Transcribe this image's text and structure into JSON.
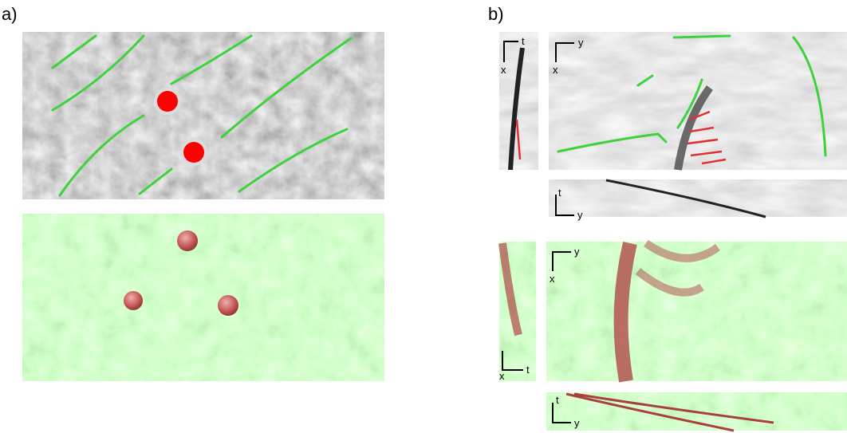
{
  "panel_a": {
    "label": "a)"
  },
  "panel_b": {
    "label": "b)",
    "insets": [
      {
        "labels": [
          "t",
          "x"
        ]
      },
      {
        "labels": [
          "y",
          "x"
        ]
      },
      {
        "labels": [
          "t",
          "y"
        ]
      },
      {
        "labels": [
          "x",
          "t"
        ]
      },
      {
        "labels": [
          "y",
          "x"
        ]
      },
      {
        "labels": [
          "t",
          "y"
        ]
      }
    ]
  }
}
